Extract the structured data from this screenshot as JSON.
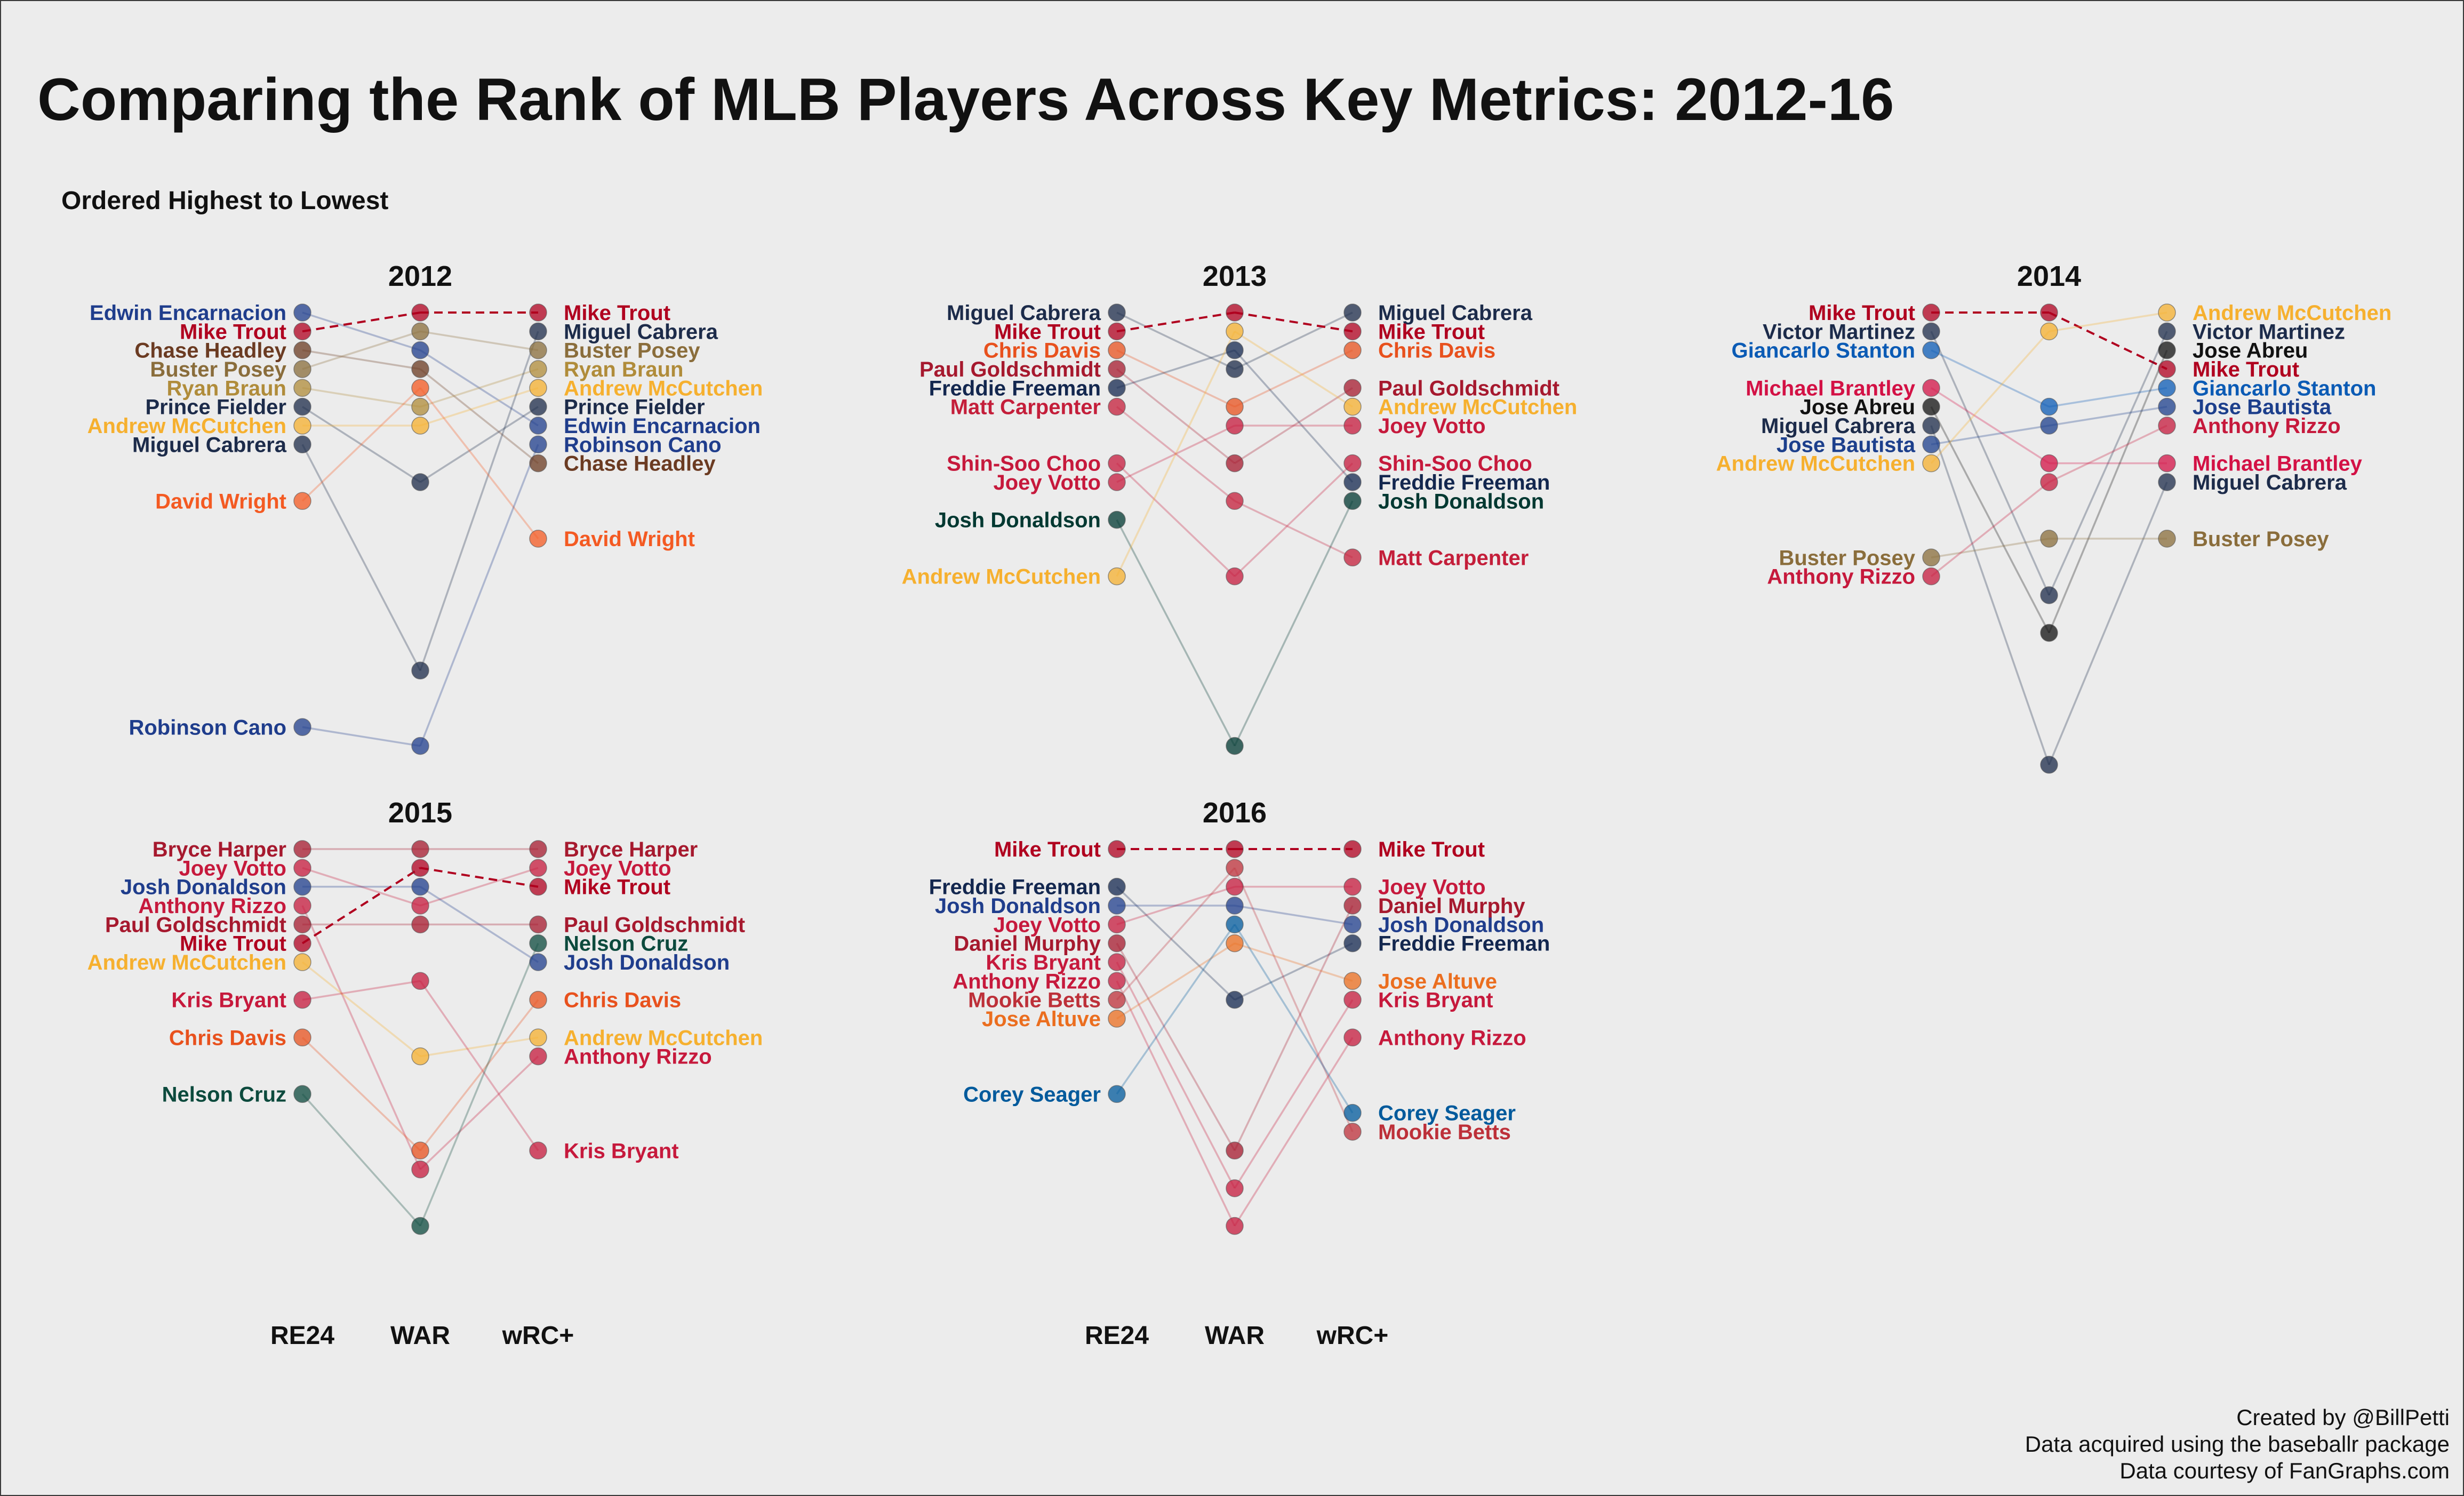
{
  "title": "Comparing the Rank of MLB Players Across Key Metrics: 2012-16",
  "subtitle": "Ordered Highest to Lowest",
  "x_axis_labels": [
    "RE24",
    "WAR",
    "wRC+"
  ],
  "caption": [
    "Created by @BillPetti",
    "Data acquired using the baseballr package",
    "Data courtesy of FanGraphs.com"
  ],
  "chart_data": {
    "type": "slope",
    "metrics": [
      "RE24",
      "WAR",
      "wRC+"
    ],
    "rank_axis": "rank, 1 = highest",
    "panels": [
      {
        "year": "2012",
        "players": [
          {
            "name": "Edwin Encarnacion",
            "color": "#1f3d8c",
            "ranks": [
              1,
              3,
              7
            ]
          },
          {
            "name": "Mike Trout",
            "color": "#b0001f",
            "ranks": [
              2,
              1,
              1
            ]
          },
          {
            "name": "Chase Headley",
            "color": "#6b3b22",
            "ranks": [
              3,
              4,
              9
            ]
          },
          {
            "name": "Buster Posey",
            "color": "#8a6d3b",
            "ranks": [
              4,
              2,
              3
            ]
          },
          {
            "name": "Ryan Braun",
            "color": "#b08c3a",
            "ranks": [
              5,
              6,
              4
            ]
          },
          {
            "name": "Prince Fielder",
            "color": "#1c2b4a",
            "ranks": [
              6,
              10,
              6
            ]
          },
          {
            "name": "Andrew McCutchen",
            "color": "#f6b02f",
            "ranks": [
              7,
              7,
              5
            ]
          },
          {
            "name": "Miguel Cabrera",
            "color": "#1c2b4a",
            "ranks": [
              8,
              20,
              2
            ]
          },
          {
            "name": "David Wright",
            "color": "#f45a22",
            "ranks": [
              11,
              5,
              13
            ]
          },
          {
            "name": "Robinson Cano",
            "color": "#1f3d8c",
            "ranks": [
              23,
              24,
              8
            ]
          }
        ]
      },
      {
        "year": "2013",
        "players": [
          {
            "name": "Miguel Cabrera",
            "color": "#1c2b4a",
            "ranks": [
              1,
              4,
              1
            ]
          },
          {
            "name": "Mike Trout",
            "color": "#b0001f",
            "ranks": [
              2,
              1,
              2
            ]
          },
          {
            "name": "Chris Davis",
            "color": "#e8511d",
            "ranks": [
              3,
              6,
              3
            ]
          },
          {
            "name": "Paul Goldschmidt",
            "color": "#a6192e",
            "ranks": [
              4,
              9,
              5
            ]
          },
          {
            "name": "Freddie Freeman",
            "color": "#13274f",
            "ranks": [
              5,
              3,
              10
            ]
          },
          {
            "name": "Matt Carpenter",
            "color": "#c41e3a",
            "ranks": [
              6,
              11,
              14
            ]
          },
          {
            "name": "Shin-Soo Choo",
            "color": "#c6193c",
            "ranks": [
              9,
              15,
              9
            ]
          },
          {
            "name": "Joey Votto",
            "color": "#c6193c",
            "ranks": [
              10,
              7,
              7
            ]
          },
          {
            "name": "Josh Donaldson",
            "color": "#003831",
            "ranks": [
              12,
              24,
              11
            ]
          },
          {
            "name": "Andrew McCutchen",
            "color": "#f6b02f",
            "ranks": [
              15,
              2,
              6
            ]
          }
        ]
      },
      {
        "year": "2014",
        "players": [
          {
            "name": "Mike Trout",
            "color": "#b0001f",
            "ranks": [
              1,
              1,
              4
            ]
          },
          {
            "name": "Victor Martinez",
            "color": "#1c2b4a",
            "ranks": [
              2,
              16,
              2
            ]
          },
          {
            "name": "Giancarlo Stanton",
            "color": "#0b5bb5",
            "ranks": [
              3,
              6,
              5
            ]
          },
          {
            "name": "Michael Brantley",
            "color": "#d31145",
            "ranks": [
              5,
              9,
              9
            ]
          },
          {
            "name": "Jose Abreu",
            "color": "#111111",
            "ranks": [
              6,
              18,
              3
            ]
          },
          {
            "name": "Miguel Cabrera",
            "color": "#1c2b4a",
            "ranks": [
              7,
              25,
              10
            ]
          },
          {
            "name": "Jose Bautista",
            "color": "#1c3f8c",
            "ranks": [
              8,
              7,
              6
            ]
          },
          {
            "name": "Andrew McCutchen",
            "color": "#f6b02f",
            "ranks": [
              9,
              2,
              1
            ]
          },
          {
            "name": "Buster Posey",
            "color": "#8a6d3b",
            "ranks": [
              14,
              13,
              13
            ]
          },
          {
            "name": "Anthony Rizzo",
            "color": "#c6193c",
            "ranks": [
              15,
              10,
              7
            ]
          }
        ]
      },
      {
        "year": "2015",
        "players": [
          {
            "name": "Bryce Harper",
            "color": "#a6192e",
            "ranks": [
              1,
              1,
              1
            ]
          },
          {
            "name": "Joey Votto",
            "color": "#c6193c",
            "ranks": [
              2,
              4,
              2
            ]
          },
          {
            "name": "Josh Donaldson",
            "color": "#1f3d8c",
            "ranks": [
              3,
              3,
              7
            ]
          },
          {
            "name": "Anthony Rizzo",
            "color": "#c6193c",
            "ranks": [
              4,
              18,
              12
            ]
          },
          {
            "name": "Paul Goldschmidt",
            "color": "#a6192e",
            "ranks": [
              5,
              5,
              5
            ]
          },
          {
            "name": "Mike Trout",
            "color": "#b0001f",
            "ranks": [
              6,
              2,
              3
            ]
          },
          {
            "name": "Andrew McCutchen",
            "color": "#f6b02f",
            "ranks": [
              7,
              12,
              11
            ]
          },
          {
            "name": "Kris Bryant",
            "color": "#c6193c",
            "ranks": [
              9,
              8,
              17
            ]
          },
          {
            "name": "Chris Davis",
            "color": "#e8511d",
            "ranks": [
              11,
              17,
              9
            ]
          },
          {
            "name": "Nelson Cruz",
            "color": "#0c4a3d",
            "ranks": [
              14,
              21,
              6
            ]
          }
        ]
      },
      {
        "year": "2016",
        "players": [
          {
            "name": "Mike Trout",
            "color": "#b0001f",
            "ranks": [
              1,
              1,
              1
            ]
          },
          {
            "name": "Freddie Freeman",
            "color": "#13274f",
            "ranks": [
              3,
              9,
              6
            ]
          },
          {
            "name": "Josh Donaldson",
            "color": "#1f3d8c",
            "ranks": [
              4,
              4,
              5
            ]
          },
          {
            "name": "Joey Votto",
            "color": "#c6193c",
            "ranks": [
              5,
              3,
              3
            ]
          },
          {
            "name": "Daniel Murphy",
            "color": "#a6192e",
            "ranks": [
              6,
              17,
              4
            ]
          },
          {
            "name": "Kris Bryant",
            "color": "#c6193c",
            "ranks": [
              7,
              19,
              9
            ]
          },
          {
            "name": "Anthony Rizzo",
            "color": "#c6193c",
            "ranks": [
              8,
              21,
              11
            ]
          },
          {
            "name": "Mookie Betts",
            "color": "#bd3039",
            "ranks": [
              9,
              2,
              16
            ]
          },
          {
            "name": "Jose Altuve",
            "color": "#eb6e1f",
            "ranks": [
              10,
              6,
              8
            ]
          },
          {
            "name": "Corey Seager",
            "color": "#005a9c",
            "ranks": [
              14,
              5,
              15
            ]
          }
        ]
      }
    ]
  }
}
